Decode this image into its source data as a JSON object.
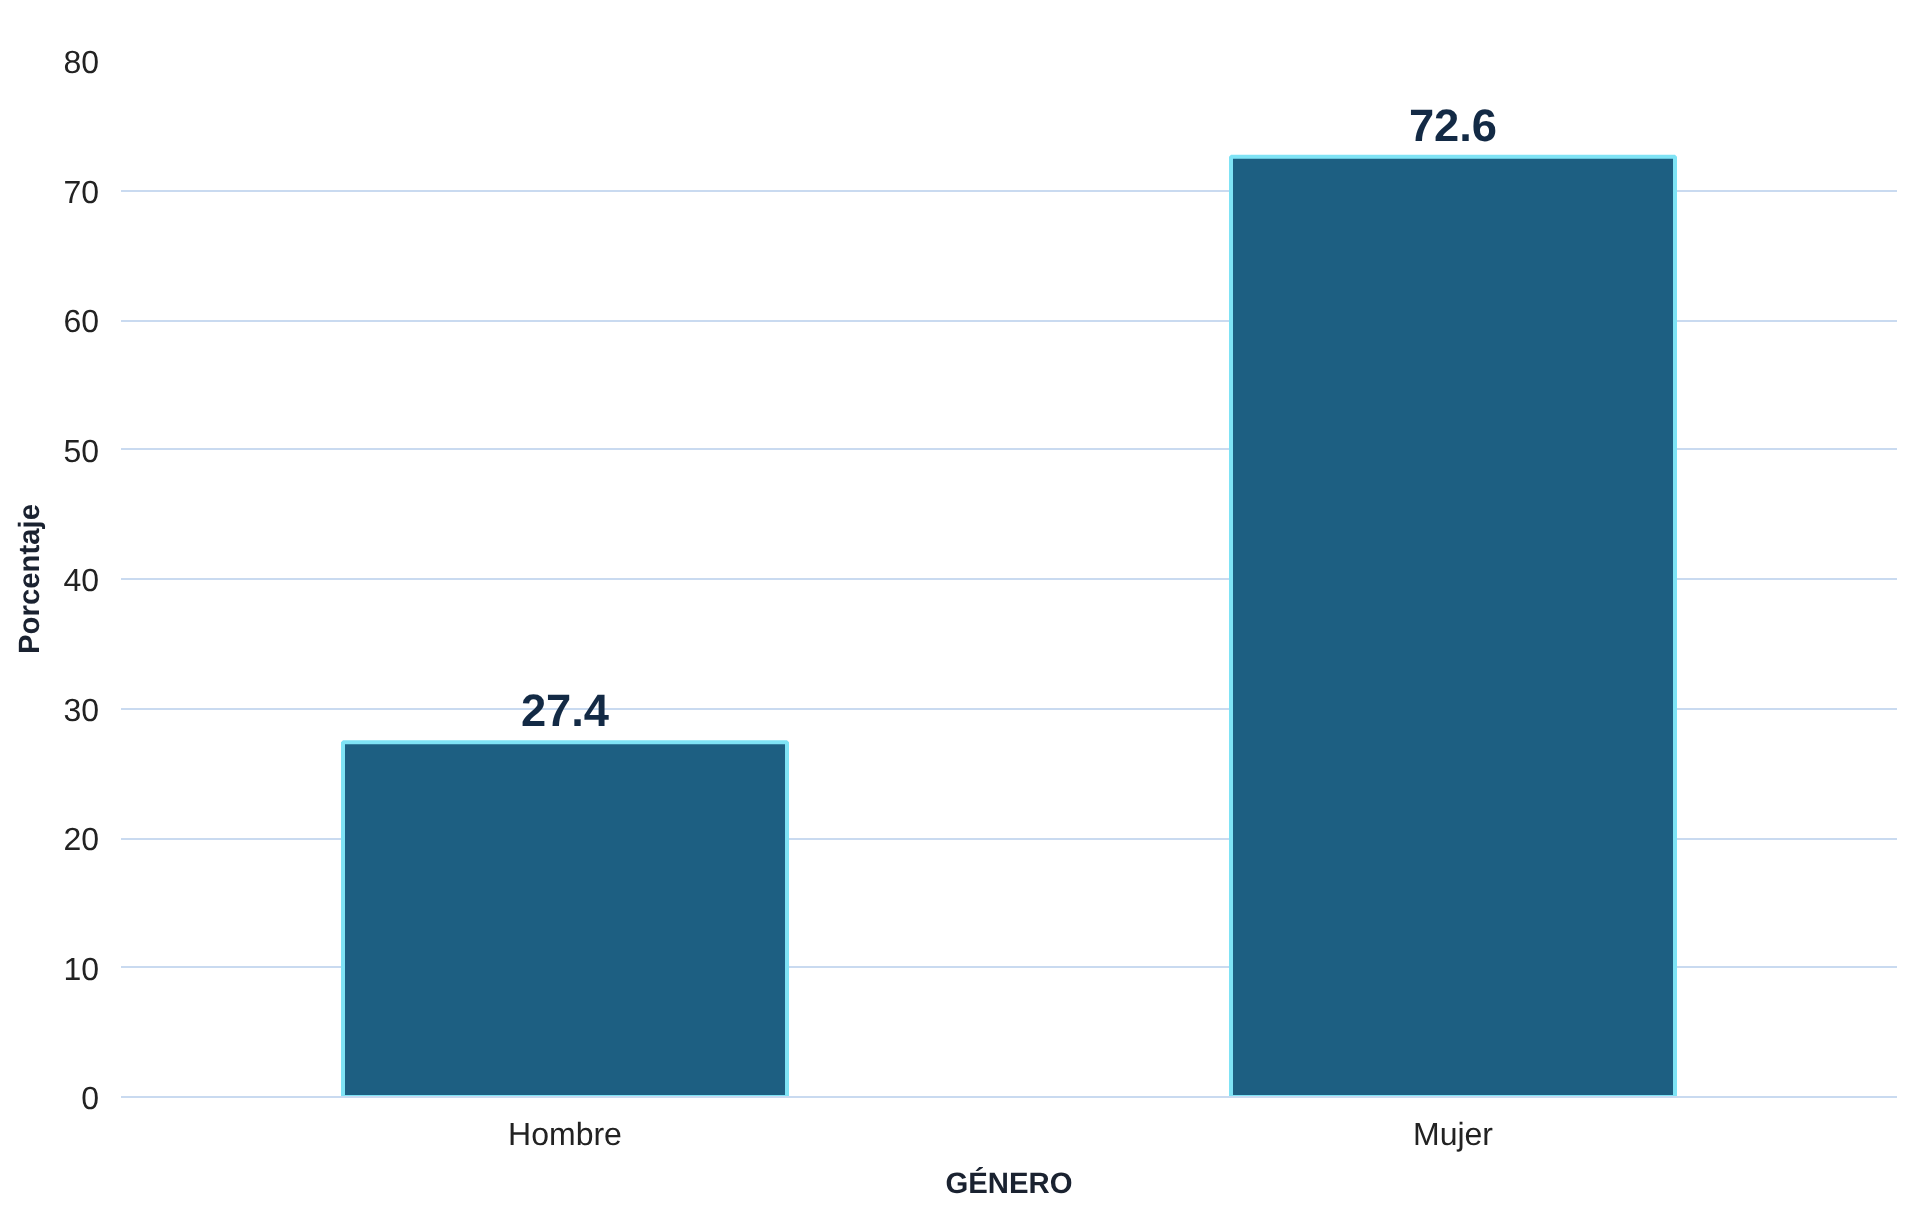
{
  "chart_data": {
    "type": "bar",
    "xlabel": "GÉNERO",
    "ylabel": "Porcentaje",
    "categories": [
      "Hombre",
      "Mujer"
    ],
    "values": [
      27.4,
      72.6
    ],
    "color": "#1d5f82",
    "ylim": [
      0,
      80
    ],
    "yticks": [
      0,
      10,
      20,
      30,
      40,
      50,
      60,
      70,
      80
    ],
    "grid": "y",
    "data_labels": true
  }
}
